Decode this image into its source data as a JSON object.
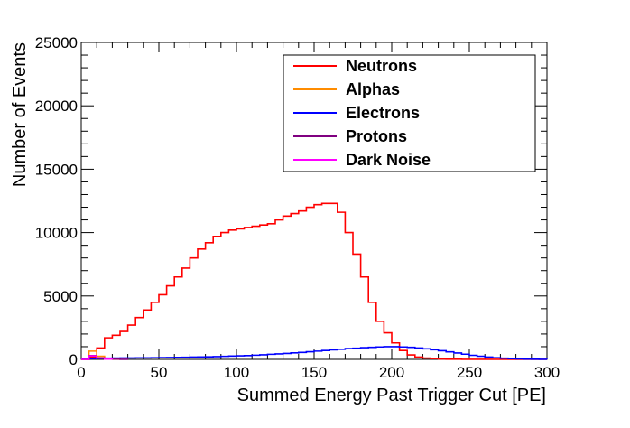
{
  "chart_data": {
    "type": "line",
    "step": true,
    "xlabel": "Summed Energy Past Trigger Cut [PE]",
    "ylabel": "Number of Events",
    "xlim": [
      0,
      300
    ],
    "ylim": [
      0,
      25000
    ],
    "xticks": [
      0,
      50,
      100,
      150,
      200,
      250,
      300
    ],
    "yticks": [
      0,
      5000,
      10000,
      15000,
      20000,
      25000
    ],
    "legend_position": "top-right",
    "grid": false,
    "series": [
      {
        "name": "Neutrons",
        "color": "#ff0000",
        "x": [
          0,
          5,
          10,
          15,
          20,
          25,
          30,
          35,
          40,
          45,
          50,
          55,
          60,
          65,
          70,
          75,
          80,
          85,
          90,
          95,
          100,
          105,
          110,
          115,
          120,
          125,
          130,
          135,
          140,
          145,
          150,
          155,
          160,
          165,
          170,
          175,
          180,
          185,
          190,
          195,
          200,
          205,
          210,
          215,
          220,
          225,
          230,
          235,
          240,
          245,
          250,
          255,
          260,
          265,
          270,
          275,
          280,
          285,
          290,
          295,
          300
        ],
        "y": [
          0,
          200,
          900,
          1700,
          1900,
          2200,
          2700,
          3300,
          3900,
          4500,
          5100,
          5800,
          6500,
          7200,
          8000,
          8700,
          9200,
          9700,
          10000,
          10200,
          10300,
          10400,
          10500,
          10600,
          10700,
          11000,
          11300,
          11500,
          11700,
          12000,
          12200,
          12300,
          12300,
          11600,
          10000,
          8300,
          6500,
          4500,
          3000,
          2100,
          1300,
          700,
          350,
          180,
          100,
          60,
          30,
          15,
          10,
          5,
          3,
          2,
          1,
          1,
          0,
          0,
          0,
          0,
          0,
          0,
          0
        ]
      },
      {
        "name": "Alphas",
        "color": "#ff8c00",
        "x": [
          0,
          5,
          10,
          15,
          20,
          25
        ],
        "y": [
          0,
          650,
          250,
          60,
          10,
          0
        ]
      },
      {
        "name": "Electrons",
        "color": "#0000ff",
        "x": [
          0,
          5,
          10,
          15,
          20,
          25,
          30,
          35,
          40,
          45,
          50,
          55,
          60,
          65,
          70,
          75,
          80,
          85,
          90,
          95,
          100,
          105,
          110,
          115,
          120,
          125,
          130,
          135,
          140,
          145,
          150,
          155,
          160,
          165,
          170,
          175,
          180,
          185,
          190,
          195,
          200,
          205,
          210,
          215,
          220,
          225,
          230,
          235,
          240,
          245,
          250,
          255,
          260,
          265,
          270,
          275,
          280,
          285,
          290,
          295,
          300
        ],
        "y": [
          30,
          60,
          80,
          90,
          100,
          110,
          110,
          120,
          120,
          130,
          140,
          150,
          160,
          170,
          180,
          190,
          200,
          220,
          240,
          260,
          280,
          300,
          330,
          360,
          400,
          430,
          470,
          510,
          550,
          600,
          650,
          700,
          750,
          800,
          850,
          880,
          920,
          950,
          980,
          1000,
          1000,
          980,
          950,
          900,
          830,
          760,
          680,
          590,
          500,
          410,
          320,
          250,
          180,
          130,
          90,
          60,
          40,
          25,
          15,
          8,
          0
        ]
      },
      {
        "name": "Protons",
        "color": "#800080",
        "x": [
          0,
          5,
          10,
          15,
          20,
          25,
          30
        ],
        "y": [
          0,
          300,
          120,
          50,
          20,
          5,
          0
        ]
      },
      {
        "name": "Dark Noise",
        "color": "#ff00ff",
        "x": [
          0,
          5,
          10,
          15,
          20
        ],
        "y": [
          0,
          280,
          100,
          20,
          0
        ]
      }
    ]
  }
}
